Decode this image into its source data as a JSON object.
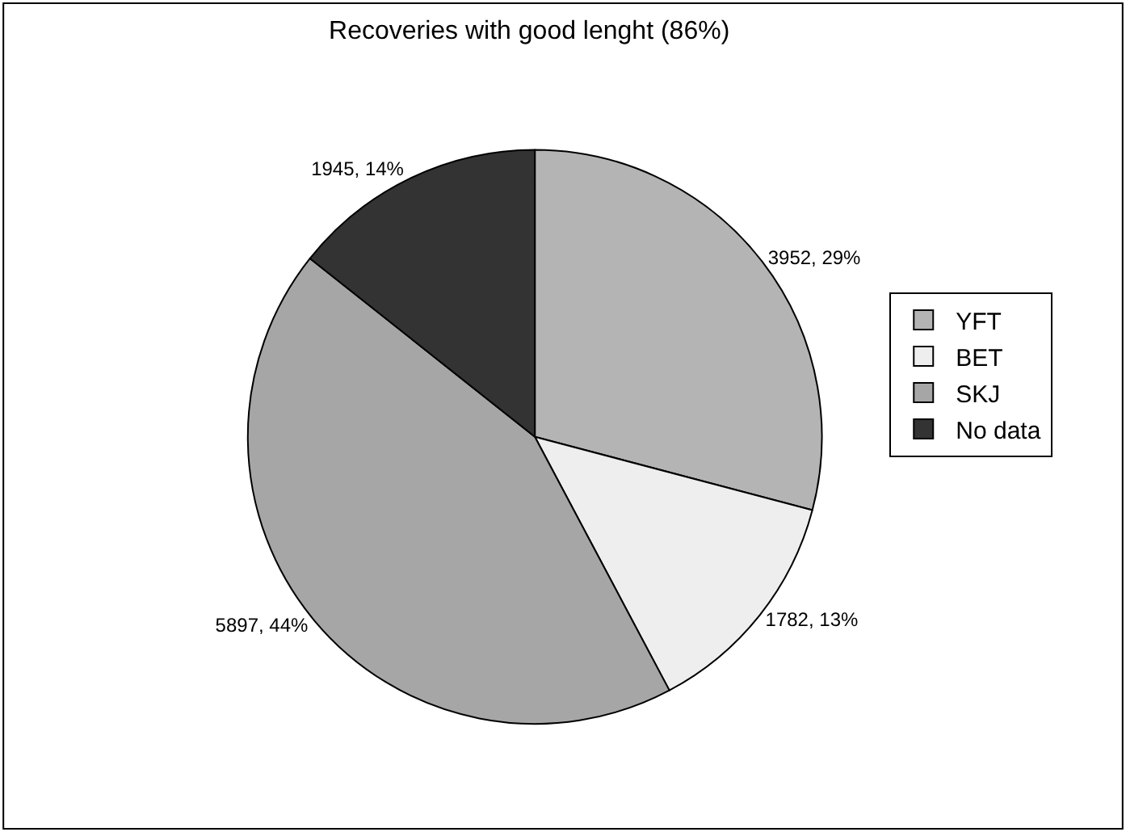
{
  "chart_data": {
    "type": "pie",
    "title": "Recoveries with good lenght (86%)",
    "categories": [
      "YFT",
      "BET",
      "SKJ",
      "No data"
    ],
    "values": [
      3952,
      1782,
      5897,
      1945
    ],
    "value_labels": [
      "3952, 29%",
      "1782, 13%",
      "5897, 44%",
      "1945, 14%"
    ],
    "colors": [
      "#b4b4b4",
      "#eeeeee",
      "#a6a6a6",
      "#333333"
    ],
    "legend": "right"
  }
}
